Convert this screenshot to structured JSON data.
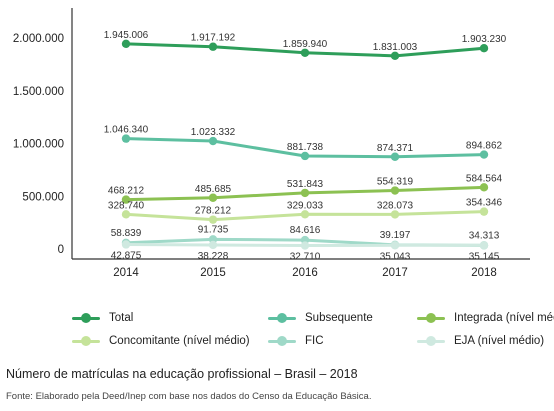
{
  "chart_data": {
    "type": "line",
    "x": [
      "2014",
      "2015",
      "2016",
      "2017",
      "2018"
    ],
    "y_ticks": [
      "2.000.000",
      "1.500.000",
      "1.000.000",
      "500.000",
      "0"
    ],
    "ylim": [
      0,
      2000000
    ],
    "grid": false,
    "legend_position": "bottom",
    "series": [
      {
        "name": "Total",
        "color": "#2e9e5a",
        "values": [
          1945006,
          1917192,
          1859940,
          1831003,
          1903230
        ],
        "labels": [
          "1.945.006",
          "1.917.192",
          "1.859.940",
          "1.831.003",
          "1.903.230"
        ]
      },
      {
        "name": "Subsequente",
        "color": "#5dbfa0",
        "values": [
          1046340,
          1023332,
          881738,
          874371,
          894862
        ],
        "labels": [
          "1.046.340",
          "1.023.332",
          "881.738",
          "874.371",
          "894.862"
        ]
      },
      {
        "name": "Integrada (nível médio)",
        "color": "#8cc152",
        "values": [
          468212,
          485685,
          531843,
          554319,
          584564
        ],
        "labels": [
          "468.212",
          "485.685",
          "531.843",
          "554.319",
          "584.564"
        ]
      },
      {
        "name": "Concomitante (nível médio)",
        "color": "#c5e39a",
        "values": [
          328740,
          278212,
          329033,
          328073,
          354346
        ],
        "labels": [
          "328.740",
          "278.212",
          "329.033",
          "328.073",
          "354.346"
        ]
      },
      {
        "name": "FIC",
        "color": "#9fd9c8",
        "values": [
          58839,
          91735,
          84616,
          39197,
          34313
        ],
        "labels": [
          "58.839",
          "91.735",
          "84.616",
          "39.197",
          "34.313"
        ]
      },
      {
        "name": "EJA (nível médio)",
        "color": "#cfe9e0",
        "values": [
          42875,
          38228,
          32710,
          35043,
          35145
        ],
        "labels": [
          "42.875",
          "38.228",
          "32.710",
          "35.043",
          "35.145"
        ]
      }
    ]
  },
  "caption": "Número de matrículas na educação profissional – Brasil – 2018",
  "source": "Fonte: Elaborado pela Deed/Inep com base nos dados do Censo da Educação Básica."
}
